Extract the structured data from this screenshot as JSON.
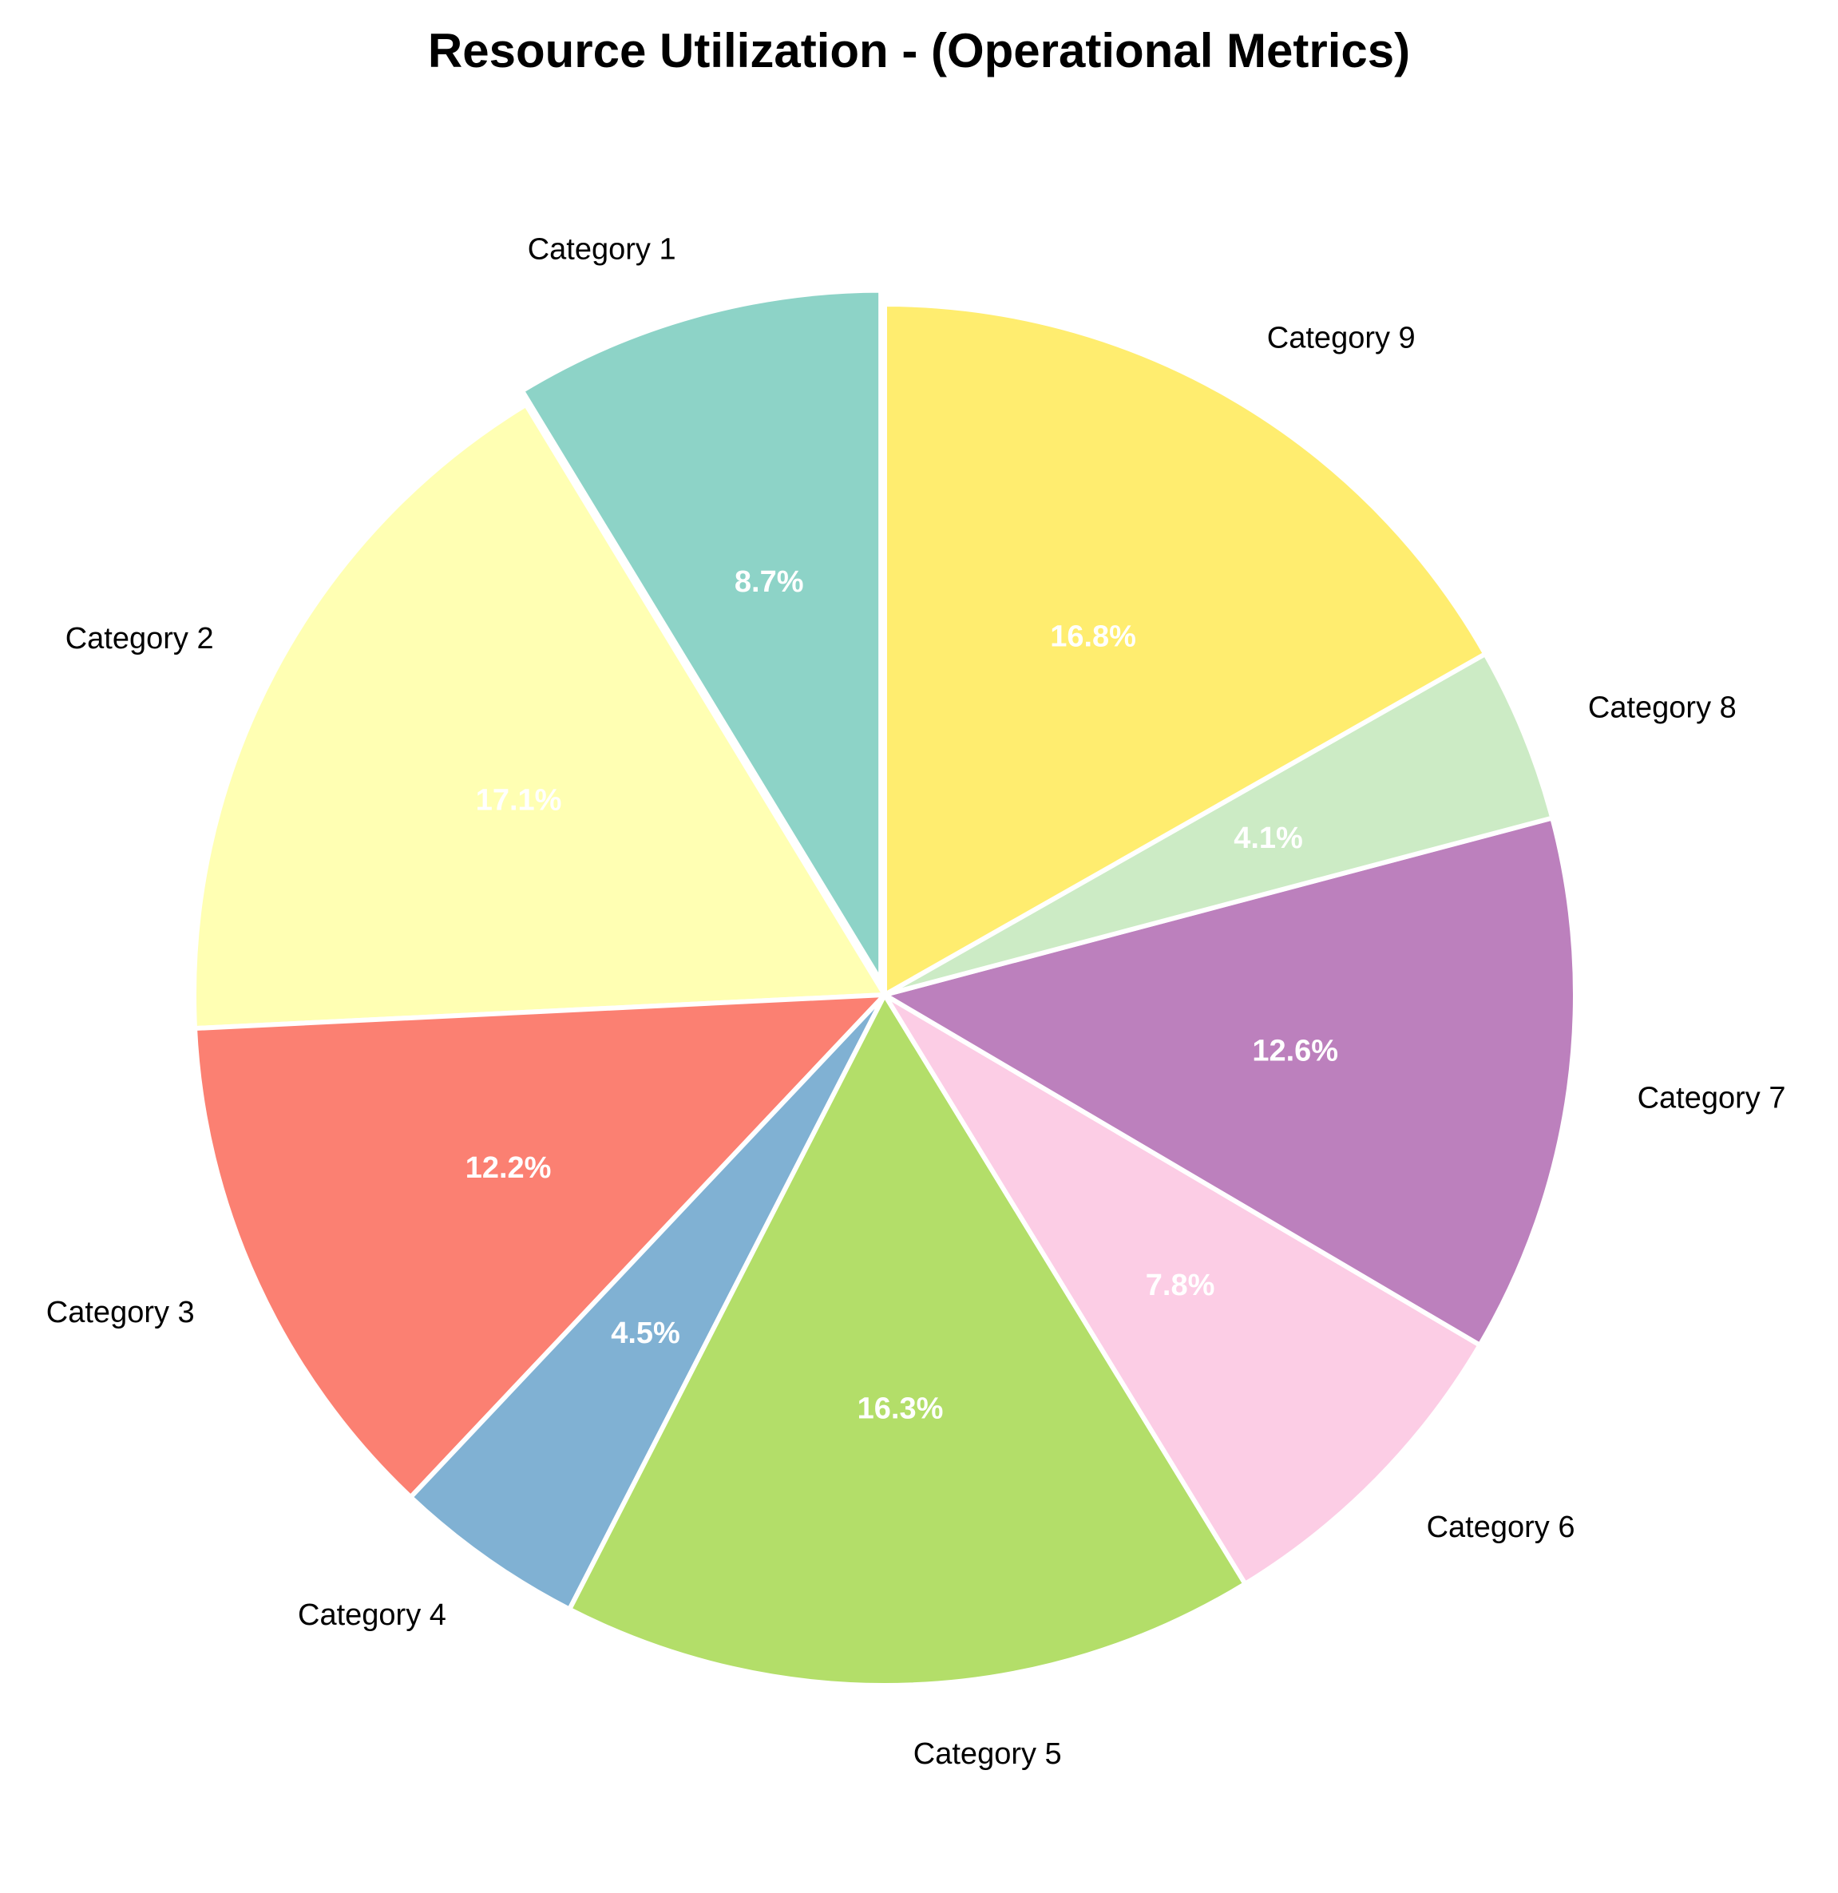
{
  "chart_data": {
    "type": "pie",
    "title": "Resource Utilization - (Operational Metrics)",
    "categories": [
      "Category 1",
      "Category 2",
      "Category 3",
      "Category 4",
      "Category 5",
      "Category 6",
      "Category 7",
      "Category 8",
      "Category 9"
    ],
    "values": [
      8.7,
      17.1,
      12.2,
      4.5,
      16.3,
      7.8,
      12.6,
      4.1,
      16.8
    ],
    "value_labels": [
      "8.7%",
      "17.1%",
      "12.2%",
      "4.5%",
      "16.3%",
      "7.8%",
      "12.6%",
      "4.1%",
      "16.8%"
    ],
    "colors": [
      "#8dd3c7",
      "#ffffb3",
      "#fb8072",
      "#80b1d3",
      "#b3de69",
      "#fccde5",
      "#bc80bd",
      "#ccebc5",
      "#ffed6f"
    ],
    "start_angle_deg": 90,
    "direction": "counterclockwise",
    "exploded": [
      "Category 1"
    ],
    "legend": "none"
  }
}
